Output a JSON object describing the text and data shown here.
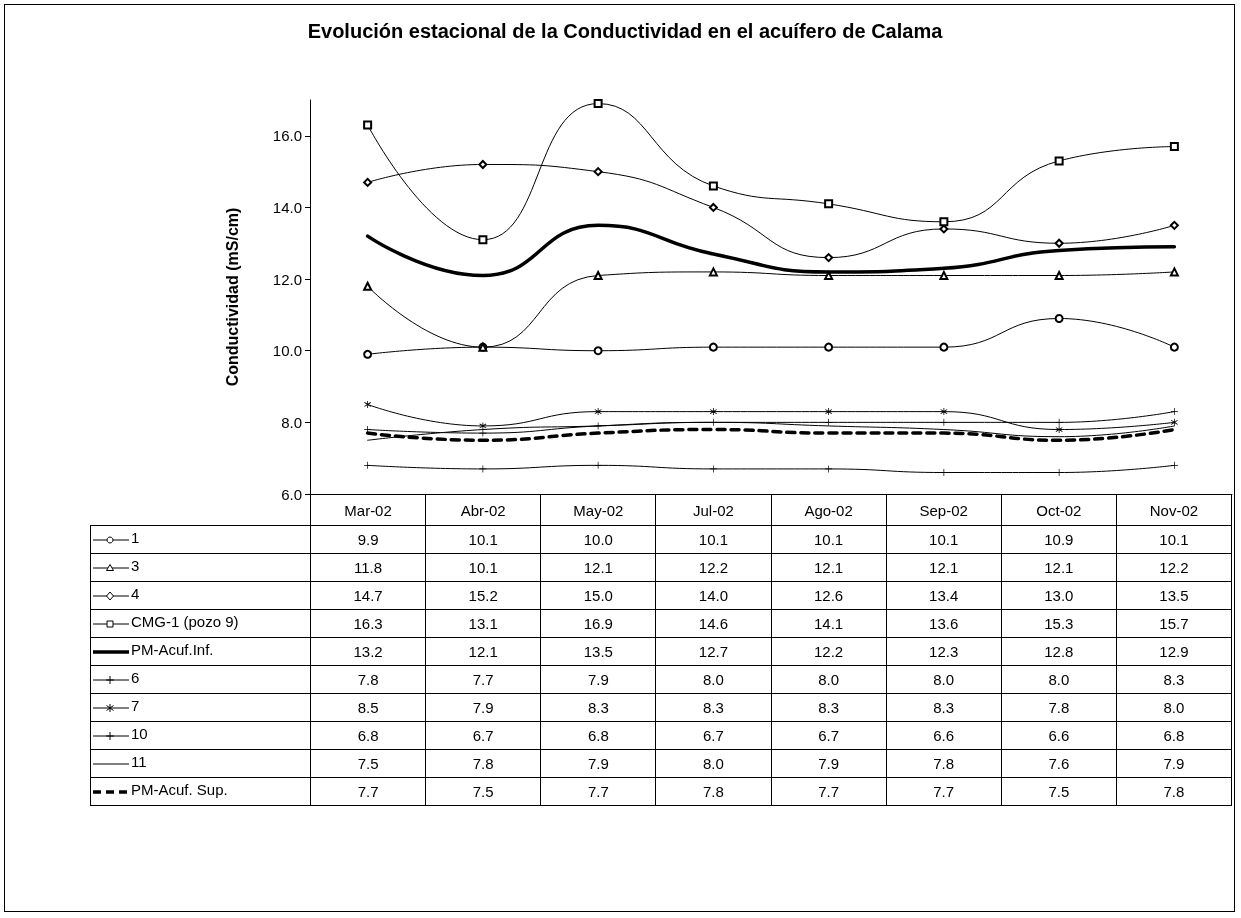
{
  "chart_data": {
    "type": "line",
    "title": "Evolución estacional de la Conductividad en el acuífero de Calama",
    "ylabel": "Conductividad (mS/cm)",
    "categories": [
      "Mar-02",
      "Abr-02",
      "May-02",
      "Jul-02",
      "Ago-02",
      "Sep-02",
      "Oct-02",
      "Nov-02"
    ],
    "ylim": [
      6,
      17
    ],
    "yticks": [
      {
        "value": 6,
        "label": "6.0"
      },
      {
        "value": 8,
        "label": "8.0"
      },
      {
        "value": 10,
        "label": "10.0"
      },
      {
        "value": 12,
        "label": "12.0"
      },
      {
        "value": 14,
        "label": "14.0"
      },
      {
        "value": 16,
        "label": "16.0"
      }
    ],
    "grid": false,
    "legend": "bottom left",
    "series": [
      {
        "name": "1",
        "color": "#000000",
        "marker": "circle",
        "values": [
          9.9,
          10.1,
          10.0,
          10.1,
          10.1,
          10.1,
          10.9,
          10.1
        ],
        "value_labels": [
          "9.9",
          "10.1",
          "10.0",
          "10.1",
          "10.1",
          "10.1",
          "10.9",
          "10.1"
        ]
      },
      {
        "name": "3",
        "color": "#000000",
        "marker": "triangle",
        "values": [
          11.8,
          10.1,
          12.1,
          12.2,
          12.1,
          12.1,
          12.1,
          12.2
        ],
        "value_labels": [
          "11.8",
          "10.1",
          "12.1",
          "12.2",
          "12.1",
          "12.1",
          "12.1",
          "12.2"
        ]
      },
      {
        "name": "4",
        "color": "#000000",
        "marker": "diamond",
        "values": [
          14.7,
          15.2,
          15.0,
          14.0,
          12.6,
          13.4,
          13.0,
          13.5
        ],
        "value_labels": [
          "14.7",
          "15.2",
          "15.0",
          "14.0",
          "12.6",
          "13.4",
          "13.0",
          "13.5"
        ]
      },
      {
        "name": "CMG-1 (pozo 9)",
        "color": "#000000",
        "marker": "square",
        "values": [
          16.3,
          13.1,
          16.9,
          14.6,
          14.1,
          13.6,
          15.3,
          15.7
        ],
        "value_labels": [
          "16.3",
          "13.1",
          "16.9",
          "14.6",
          "14.1",
          "13.6",
          "15.3",
          "15.7"
        ]
      },
      {
        "name": "PM-Acuf.Inf.",
        "color": "#000000",
        "marker": "none",
        "line_style": "solid",
        "values": [
          13.2,
          12.1,
          13.5,
          12.7,
          12.2,
          12.3,
          12.8,
          12.9
        ],
        "value_labels": [
          "13.2",
          "12.1",
          "13.5",
          "12.7",
          "12.2",
          "12.3",
          "12.8",
          "12.9"
        ]
      },
      {
        "name": "6",
        "color": "#000000",
        "marker": "cross",
        "values": [
          7.8,
          7.7,
          7.9,
          8.0,
          8.0,
          8.0,
          8.0,
          8.3
        ],
        "value_labels": [
          "7.8",
          "7.7",
          "7.9",
          "8.0",
          "8.0",
          "8.0",
          "8.0",
          "8.3"
        ]
      },
      {
        "name": "7",
        "color": "#000000",
        "marker": "star",
        "values": [
          8.5,
          7.9,
          8.3,
          8.3,
          8.3,
          8.3,
          7.8,
          8.0
        ],
        "value_labels": [
          "8.5",
          "7.9",
          "8.3",
          "8.3",
          "8.3",
          "8.3",
          "7.8",
          "8.0"
        ]
      },
      {
        "name": "10",
        "color": "#000000",
        "marker": "cross",
        "values": [
          6.8,
          6.7,
          6.8,
          6.7,
          6.7,
          6.6,
          6.6,
          6.8
        ],
        "value_labels": [
          "6.8",
          "6.7",
          "6.8",
          "6.7",
          "6.7",
          "6.6",
          "6.6",
          "6.8"
        ]
      },
      {
        "name": "11",
        "color": "#000000",
        "values": [
          7.5,
          7.8,
          7.9,
          8.0,
          7.9,
          7.8,
          7.6,
          7.9
        ],
        "value_labels": [
          "7.5",
          "7.8",
          "7.9",
          "8.0",
          "7.9",
          "7.8",
          "7.6",
          "7.9"
        ]
      },
      {
        "name": "PM-Acuf. Sup.",
        "color": "#000000",
        "marker": "none",
        "line_style": "dashed",
        "values": [
          7.7,
          7.5,
          7.7,
          7.8,
          7.7,
          7.7,
          7.5,
          7.8
        ],
        "value_labels": [
          "7.7",
          "7.5",
          "7.7",
          "7.8",
          "7.7",
          "7.7",
          "7.5",
          "7.8"
        ]
      }
    ]
  }
}
